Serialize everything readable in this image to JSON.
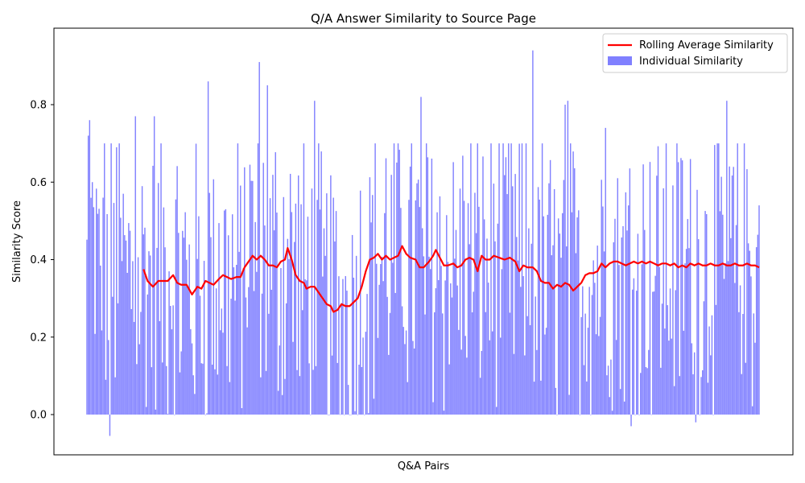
{
  "chart_data": {
    "type": "bar",
    "title": "Q/A Answer Similarity to Source Page",
    "xlabel": "Q&A Pairs",
    "ylabel": "Similarity Score",
    "ylim": [
      -0.105,
      0.99
    ],
    "yticks": [
      "0.0",
      "0.2",
      "0.4",
      "0.6",
      "0.8"
    ],
    "ytick_values": [
      0.0,
      0.2,
      0.4,
      0.6,
      0.8
    ],
    "n_pairs": 500,
    "grid": false,
    "legend_position": "top-right",
    "series": [
      {
        "name": "Rolling Average Similarity",
        "kind": "line",
        "color": "#ff0000",
        "start_index": 42,
        "end_index": 499,
        "anchors": [
          [
            42,
            0.375
          ],
          [
            45,
            0.345
          ],
          [
            49,
            0.33
          ],
          [
            53,
            0.345
          ],
          [
            57,
            0.345
          ],
          [
            60,
            0.345
          ],
          [
            64,
            0.36
          ],
          [
            67,
            0.34
          ],
          [
            70,
            0.335
          ],
          [
            74,
            0.335
          ],
          [
            78,
            0.31
          ],
          [
            82,
            0.33
          ],
          [
            85,
            0.325
          ],
          [
            88,
            0.345
          ],
          [
            91,
            0.34
          ],
          [
            94,
            0.335
          ],
          [
            98,
            0.35
          ],
          [
            101,
            0.36
          ],
          [
            104,
            0.355
          ],
          [
            107,
            0.35
          ],
          [
            111,
            0.355
          ],
          [
            114,
            0.355
          ],
          [
            117,
            0.38
          ],
          [
            120,
            0.395
          ],
          [
            123,
            0.41
          ],
          [
            126,
            0.4
          ],
          [
            129,
            0.41
          ],
          [
            132,
            0.4
          ],
          [
            135,
            0.385
          ],
          [
            138,
            0.385
          ],
          [
            141,
            0.38
          ],
          [
            144,
            0.395
          ],
          [
            147,
            0.4
          ],
          [
            149,
            0.43
          ],
          [
            152,
            0.4
          ],
          [
            155,
            0.36
          ],
          [
            158,
            0.345
          ],
          [
            161,
            0.34
          ],
          [
            163,
            0.325
          ],
          [
            166,
            0.33
          ],
          [
            169,
            0.33
          ],
          [
            172,
            0.315
          ],
          [
            175,
            0.3
          ],
          [
            178,
            0.285
          ],
          [
            181,
            0.28
          ],
          [
            183,
            0.265
          ],
          [
            186,
            0.27
          ],
          [
            189,
            0.285
          ],
          [
            192,
            0.28
          ],
          [
            195,
            0.28
          ],
          [
            198,
            0.29
          ],
          [
            201,
            0.3
          ],
          [
            204,
            0.33
          ],
          [
            207,
            0.37
          ],
          [
            210,
            0.4
          ],
          [
            213,
            0.405
          ],
          [
            216,
            0.415
          ],
          [
            219,
            0.4
          ],
          [
            222,
            0.41
          ],
          [
            225,
            0.4
          ],
          [
            228,
            0.405
          ],
          [
            231,
            0.41
          ],
          [
            234,
            0.435
          ],
          [
            237,
            0.415
          ],
          [
            240,
            0.405
          ],
          [
            244,
            0.4
          ],
          [
            247,
            0.38
          ],
          [
            250,
            0.38
          ],
          [
            254,
            0.395
          ],
          [
            257,
            0.41
          ],
          [
            259,
            0.425
          ],
          [
            262,
            0.405
          ],
          [
            265,
            0.385
          ],
          [
            268,
            0.385
          ],
          [
            272,
            0.39
          ],
          [
            275,
            0.38
          ],
          [
            278,
            0.385
          ],
          [
            281,
            0.4
          ],
          [
            284,
            0.405
          ],
          [
            287,
            0.4
          ],
          [
            290,
            0.37
          ],
          [
            293,
            0.41
          ],
          [
            296,
            0.4
          ],
          [
            299,
            0.4
          ],
          [
            302,
            0.41
          ],
          [
            306,
            0.405
          ],
          [
            310,
            0.4
          ],
          [
            314,
            0.405
          ],
          [
            318,
            0.395
          ],
          [
            321,
            0.37
          ],
          [
            324,
            0.385
          ],
          [
            327,
            0.38
          ],
          [
            331,
            0.38
          ],
          [
            334,
            0.37
          ],
          [
            337,
            0.345
          ],
          [
            340,
            0.34
          ],
          [
            343,
            0.34
          ],
          [
            346,
            0.325
          ],
          [
            349,
            0.335
          ],
          [
            352,
            0.33
          ],
          [
            355,
            0.34
          ],
          [
            358,
            0.335
          ],
          [
            361,
            0.32
          ],
          [
            364,
            0.33
          ],
          [
            367,
            0.34
          ],
          [
            370,
            0.36
          ],
          [
            373,
            0.365
          ],
          [
            376,
            0.365
          ],
          [
            379,
            0.37
          ],
          [
            382,
            0.39
          ],
          [
            385,
            0.38
          ],
          [
            388,
            0.39
          ],
          [
            391,
            0.395
          ],
          [
            394,
            0.395
          ],
          [
            397,
            0.39
          ],
          [
            400,
            0.385
          ],
          [
            403,
            0.39
          ],
          [
            406,
            0.395
          ],
          [
            409,
            0.39
          ],
          [
            412,
            0.395
          ],
          [
            415,
            0.39
          ],
          [
            418,
            0.395
          ],
          [
            421,
            0.39
          ],
          [
            424,
            0.385
          ],
          [
            427,
            0.39
          ],
          [
            430,
            0.39
          ],
          [
            433,
            0.385
          ],
          [
            436,
            0.39
          ],
          [
            439,
            0.38
          ],
          [
            442,
            0.385
          ],
          [
            445,
            0.38
          ],
          [
            448,
            0.39
          ],
          [
            451,
            0.385
          ],
          [
            454,
            0.39
          ],
          [
            457,
            0.385
          ],
          [
            460,
            0.385
          ],
          [
            463,
            0.39
          ],
          [
            466,
            0.385
          ],
          [
            469,
            0.385
          ],
          [
            472,
            0.39
          ],
          [
            475,
            0.385
          ],
          [
            478,
            0.385
          ],
          [
            481,
            0.39
          ],
          [
            484,
            0.385
          ],
          [
            487,
            0.385
          ],
          [
            490,
            0.39
          ],
          [
            493,
            0.385
          ],
          [
            496,
            0.385
          ],
          [
            499,
            0.38
          ]
        ]
      },
      {
        "name": "Individual Similarity",
        "kind": "bar",
        "color": "#8080ff",
        "n_bars": 500,
        "value_range": [
          -0.055,
          0.945
        ],
        "mean": 0.37,
        "notable_values": [
          [
            1,
            0.72
          ],
          [
            2,
            0.76
          ],
          [
            4,
            0.6
          ],
          [
            12,
            0.56
          ],
          [
            17,
            -0.055
          ],
          [
            22,
            0.69
          ],
          [
            36,
            0.77
          ],
          [
            50,
            0.77
          ],
          [
            90,
            0.86
          ],
          [
            128,
            0.91
          ],
          [
            134,
            0.85
          ],
          [
            169,
            0.81
          ],
          [
            248,
            0.82
          ],
          [
            331,
            0.94
          ],
          [
            355,
            0.8
          ],
          [
            357,
            0.81
          ],
          [
            385,
            0.74
          ],
          [
            404,
            -0.03
          ],
          [
            452,
            -0.02
          ],
          [
            475,
            0.81
          ],
          [
            499,
            0.54
          ]
        ]
      }
    ],
    "colors": {
      "line": "#ff0000",
      "bars": "#8080ff",
      "axes": "#000000",
      "background": "#ffffff"
    }
  }
}
